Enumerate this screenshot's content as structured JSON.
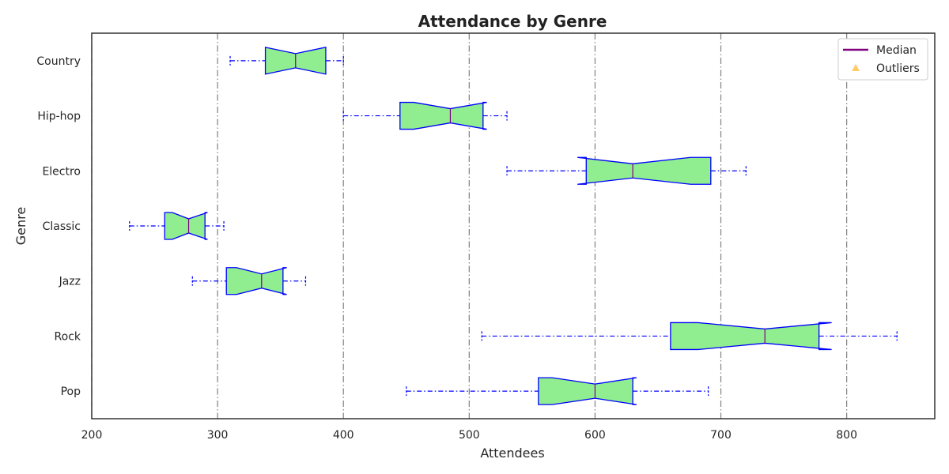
{
  "chart_data": {
    "type": "boxplot",
    "orientation": "horizontal",
    "notched": true,
    "title": "Attendance by Genre",
    "xlabel": "Attendees",
    "ylabel": "Genre",
    "xlim": [
      200,
      870
    ],
    "xticks": [
      200,
      300,
      400,
      500,
      600,
      700,
      800
    ],
    "grid": "vertical dash-dot",
    "categories": [
      "Pop",
      "Rock",
      "Jazz",
      "Classic",
      "Electro",
      "Hip-hop",
      "Country"
    ],
    "boxes": [
      {
        "category": "Pop",
        "whisker_low": 450,
        "q1": 555,
        "median": 600,
        "q3": 630,
        "whisker_high": 690,
        "notch_low": 566,
        "notch_high": 633
      },
      {
        "category": "Rock",
        "whisker_low": 510,
        "q1": 660,
        "median": 735,
        "q3": 778,
        "whisker_high": 840,
        "notch_low": 682,
        "notch_high": 788
      },
      {
        "category": "Jazz",
        "whisker_low": 280,
        "q1": 307,
        "median": 335,
        "q3": 352,
        "whisker_high": 370,
        "notch_low": 315,
        "notch_high": 355
      },
      {
        "category": "Classic",
        "whisker_low": 230,
        "q1": 258,
        "median": 277,
        "q3": 290,
        "whisker_high": 305,
        "notch_low": 264,
        "notch_high": 292
      },
      {
        "category": "Electro",
        "whisker_low": 530,
        "q1": 593,
        "median": 630,
        "q3": 692,
        "whisker_high": 720,
        "notch_low": 586,
        "notch_high": 676
      },
      {
        "category": "Hip-hop",
        "whisker_low": 400,
        "q1": 445,
        "median": 485,
        "q3": 511,
        "whisker_high": 530,
        "notch_low": 456,
        "notch_high": 514
      },
      {
        "category": "Country",
        "whisker_low": 310,
        "q1": 338,
        "median": 362,
        "q3": 386,
        "whisker_high": 400,
        "notch_low": 338,
        "notch_high": 386
      }
    ],
    "outliers": [],
    "legend": {
      "placement": "top-right",
      "items": [
        {
          "label": "Median",
          "marker": "line",
          "color": "#800080"
        },
        {
          "label": "Outliers",
          "marker": "triangle",
          "color": "#ffcc66"
        }
      ]
    },
    "colors": {
      "box_fill": "#90ee90",
      "box_edge": "#0000ff",
      "whisker": "#0000ff",
      "median": "#800080",
      "grid": "#808080",
      "axes": "#333333"
    }
  }
}
